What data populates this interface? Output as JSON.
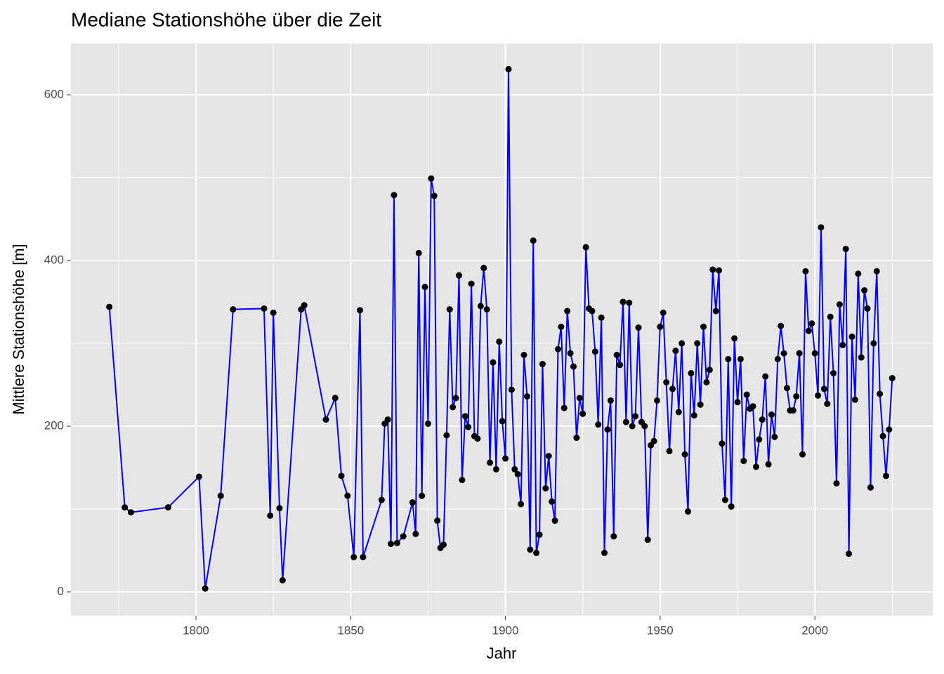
{
  "chart_data": {
    "type": "line",
    "title": "Mediane Stationshöhe über die Zeit",
    "x_label": "Jahr",
    "y_label": "Mittlere Stationshöhe [m]",
    "xlim": [
      1759.6,
      2038.1
    ],
    "ylim": [
      -28.8,
      661.9
    ],
    "xticks": [
      1800,
      1850,
      1900,
      1950,
      2000
    ],
    "yticks": [
      0,
      200,
      400,
      600
    ],
    "x_minor_ticks": [
      1775,
      1825,
      1875,
      1925,
      1975,
      2025
    ],
    "y_minor_ticks": [
      100,
      300,
      500
    ],
    "grid": true,
    "line_color": "#0000ff",
    "point_color": "#000000",
    "panel_color": "#e5e5e5",
    "x": [
      1772,
      1777,
      1779,
      1791,
      1801,
      1803,
      1808,
      1812,
      1822,
      1824,
      1825,
      1827,
      1828,
      1834,
      1835,
      1842,
      1845,
      1847,
      1849,
      1851,
      1853,
      1854,
      1860,
      1861,
      1862,
      1863,
      1864,
      1865,
      1867,
      1870,
      1871,
      1872,
      1873,
      1874,
      1875,
      1876,
      1877,
      1878,
      1879,
      1880,
      1881,
      1882,
      1883,
      1884,
      1885,
      1886,
      1887,
      1888,
      1889,
      1890,
      1891,
      1892,
      1893,
      1894,
      1895,
      1896,
      1897,
      1898,
      1899,
      1900,
      1901,
      1902,
      1903,
      1904,
      1905,
      1906,
      1907,
      1908,
      1909,
      1910,
      1911,
      1912,
      1913,
      1914,
      1915,
      1916,
      1917,
      1918,
      1919,
      1920,
      1921,
      1922,
      1923,
      1924,
      1925,
      1926,
      1927,
      1928,
      1929,
      1930,
      1931,
      1932,
      1933,
      1934,
      1935,
      1936,
      1937,
      1938,
      1939,
      1940,
      1941,
      1942,
      1943,
      1944,
      1945,
      1946,
      1947,
      1948,
      1949,
      1950,
      1951,
      1952,
      1953,
      1954,
      1955,
      1956,
      1957,
      1958,
      1959,
      1960,
      1961,
      1962,
      1963,
      1964,
      1965,
      1966,
      1967,
      1968,
      1969,
      1970,
      1971,
      1972,
      1973,
      1974,
      1975,
      1976,
      1977,
      1978,
      1979,
      1980,
      1981,
      1982,
      1983,
      1984,
      1985,
      1986,
      1987,
      1988,
      1989,
      1990,
      1991,
      1992,
      1993,
      1994,
      1995,
      1996,
      1997,
      1998,
      1999,
      2000,
      2001,
      2002,
      2003,
      2004,
      2005,
      2006,
      2007,
      2008,
      2009,
      2010,
      2011,
      2012,
      2013,
      2014,
      2015,
      2016,
      2017,
      2018,
      2019,
      2020,
      2021,
      2022,
      2023,
      2024,
      2025
    ],
    "values": [
      344,
      102,
      96,
      102,
      139,
      4,
      116,
      341,
      342,
      92,
      337,
      101,
      14,
      341,
      346,
      208,
      234,
      140,
      116,
      42,
      340,
      42,
      111,
      203,
      208,
      58,
      479,
      59,
      67,
      108,
      70,
      409,
      116,
      368,
      203,
      499,
      478,
      86,
      53,
      57,
      189,
      341,
      223,
      234,
      382,
      135,
      212,
      199,
      372,
      188,
      185,
      345,
      391,
      341,
      156,
      277,
      148,
      302,
      206,
      161,
      631,
      244,
      148,
      142,
      106,
      286,
      236,
      51,
      424,
      47,
      69,
      275,
      125,
      164,
      109,
      86,
      293,
      320,
      222,
      339,
      288,
      272,
      186,
      234,
      215,
      416,
      342,
      339,
      290,
      202,
      331,
      47,
      196,
      231,
      67,
      286,
      274,
      350,
      205,
      349,
      200,
      212,
      319,
      205,
      200,
      63,
      177,
      182,
      231,
      320,
      337,
      253,
      170,
      245,
      291,
      217,
      300,
      166,
      97,
      264,
      213,
      300,
      226,
      320,
      253,
      268,
      389,
      339,
      388,
      179,
      111,
      281,
      103,
      306,
      229,
      281,
      158,
      238,
      221,
      224,
      151,
      184,
      208,
      260,
      154,
      214,
      187,
      281,
      321,
      288,
      246,
      219,
      219,
      236,
      288,
      166,
      387,
      315,
      324,
      288,
      237,
      440,
      245,
      227,
      332,
      264,
      131,
      347,
      298,
      414,
      46,
      308,
      232,
      384,
      283,
      364,
      342,
      126,
      300,
      387,
      239,
      188,
      140,
      196,
      258
    ]
  }
}
